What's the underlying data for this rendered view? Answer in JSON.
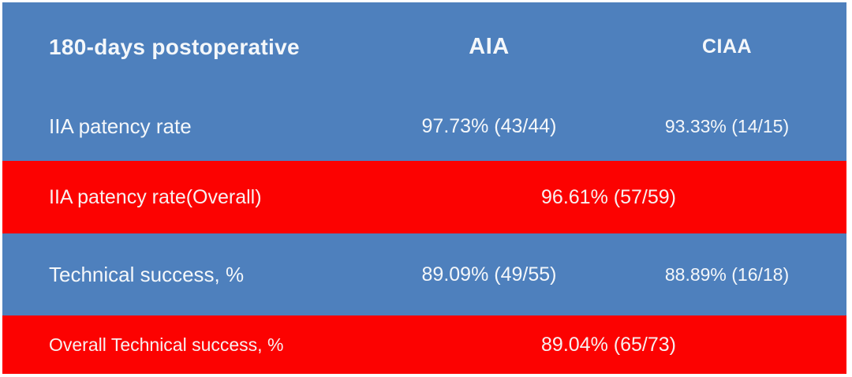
{
  "colors": {
    "row_blue": "#4e80bd",
    "row_red": "#fc0201",
    "text": "#f7f7f7",
    "page_background": "#ffffff"
  },
  "table": {
    "header": {
      "label": "180-days postoperative",
      "aia": "AIA",
      "ciaa": "CIAA"
    },
    "rows": [
      {
        "label": "IIA patency rate",
        "aia": "97.73% (43/44)",
        "ciaa": "93.33% (14/15)",
        "variant": "blue"
      },
      {
        "label": "IIA patency rate(Overall)",
        "overall": "96.61% (57/59)",
        "variant": "red"
      },
      {
        "label": "Technical success, %",
        "aia": "89.09% (49/55)",
        "ciaa": "88.89% (16/18)",
        "variant": "blue"
      },
      {
        "label": "Overall Technical success, %",
        "overall": "89.04% (65/73)",
        "variant": "red"
      }
    ]
  },
  "chart_data": {
    "type": "table",
    "title": "180-days postoperative",
    "columns": [
      "180-days postoperative",
      "AIA",
      "CIAA"
    ],
    "rows": [
      {
        "label": "IIA patency rate",
        "AIA": {
          "percent": 97.73,
          "fraction": "43/44",
          "display": "97.73% (43/44)"
        },
        "CIAA": {
          "percent": 93.33,
          "fraction": "14/15",
          "display": "93.33% (14/15)"
        },
        "highlight": "blue"
      },
      {
        "label": "IIA patency rate(Overall)",
        "overall": {
          "percent": 96.61,
          "fraction": "57/59",
          "display": "96.61% (57/59)"
        },
        "spans_columns": [
          "AIA",
          "CIAA"
        ],
        "highlight": "red"
      },
      {
        "label": "Technical success, %",
        "AIA": {
          "percent": 89.09,
          "fraction": "49/55",
          "display": "89.09% (49/55)"
        },
        "CIAA": {
          "percent": 88.89,
          "fraction": "16/18",
          "display": "88.89% (16/18)"
        },
        "highlight": "blue"
      },
      {
        "label": "Overall Technical success, %",
        "overall": {
          "percent": 89.04,
          "fraction": "65/73",
          "display": "89.04% (65/73)"
        },
        "spans_columns": [
          "AIA",
          "CIAA"
        ],
        "highlight": "red"
      }
    ],
    "layout": {
      "grid": "off",
      "row_band_colors": [
        "blue",
        "blue",
        "red",
        "blue",
        "red"
      ],
      "overall_rows_span_value_columns": true
    }
  }
}
